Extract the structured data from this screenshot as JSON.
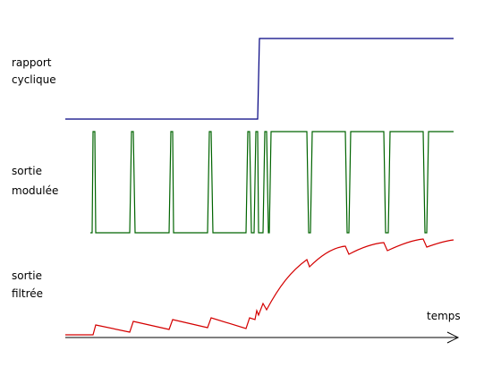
{
  "labels": {
    "duty_cycle_line1": "rapport",
    "duty_cycle_line2": "cyclique",
    "modulated_line1": "sortie",
    "modulated_line2": "modulée",
    "filtered_line1": "sortie",
    "filtered_line2": "filtrée",
    "time_axis": "temps"
  },
  "colors": {
    "duty_cycle": "#000080",
    "modulated": "#006400",
    "filtered": "#d40000",
    "axis": "#000000"
  }
}
